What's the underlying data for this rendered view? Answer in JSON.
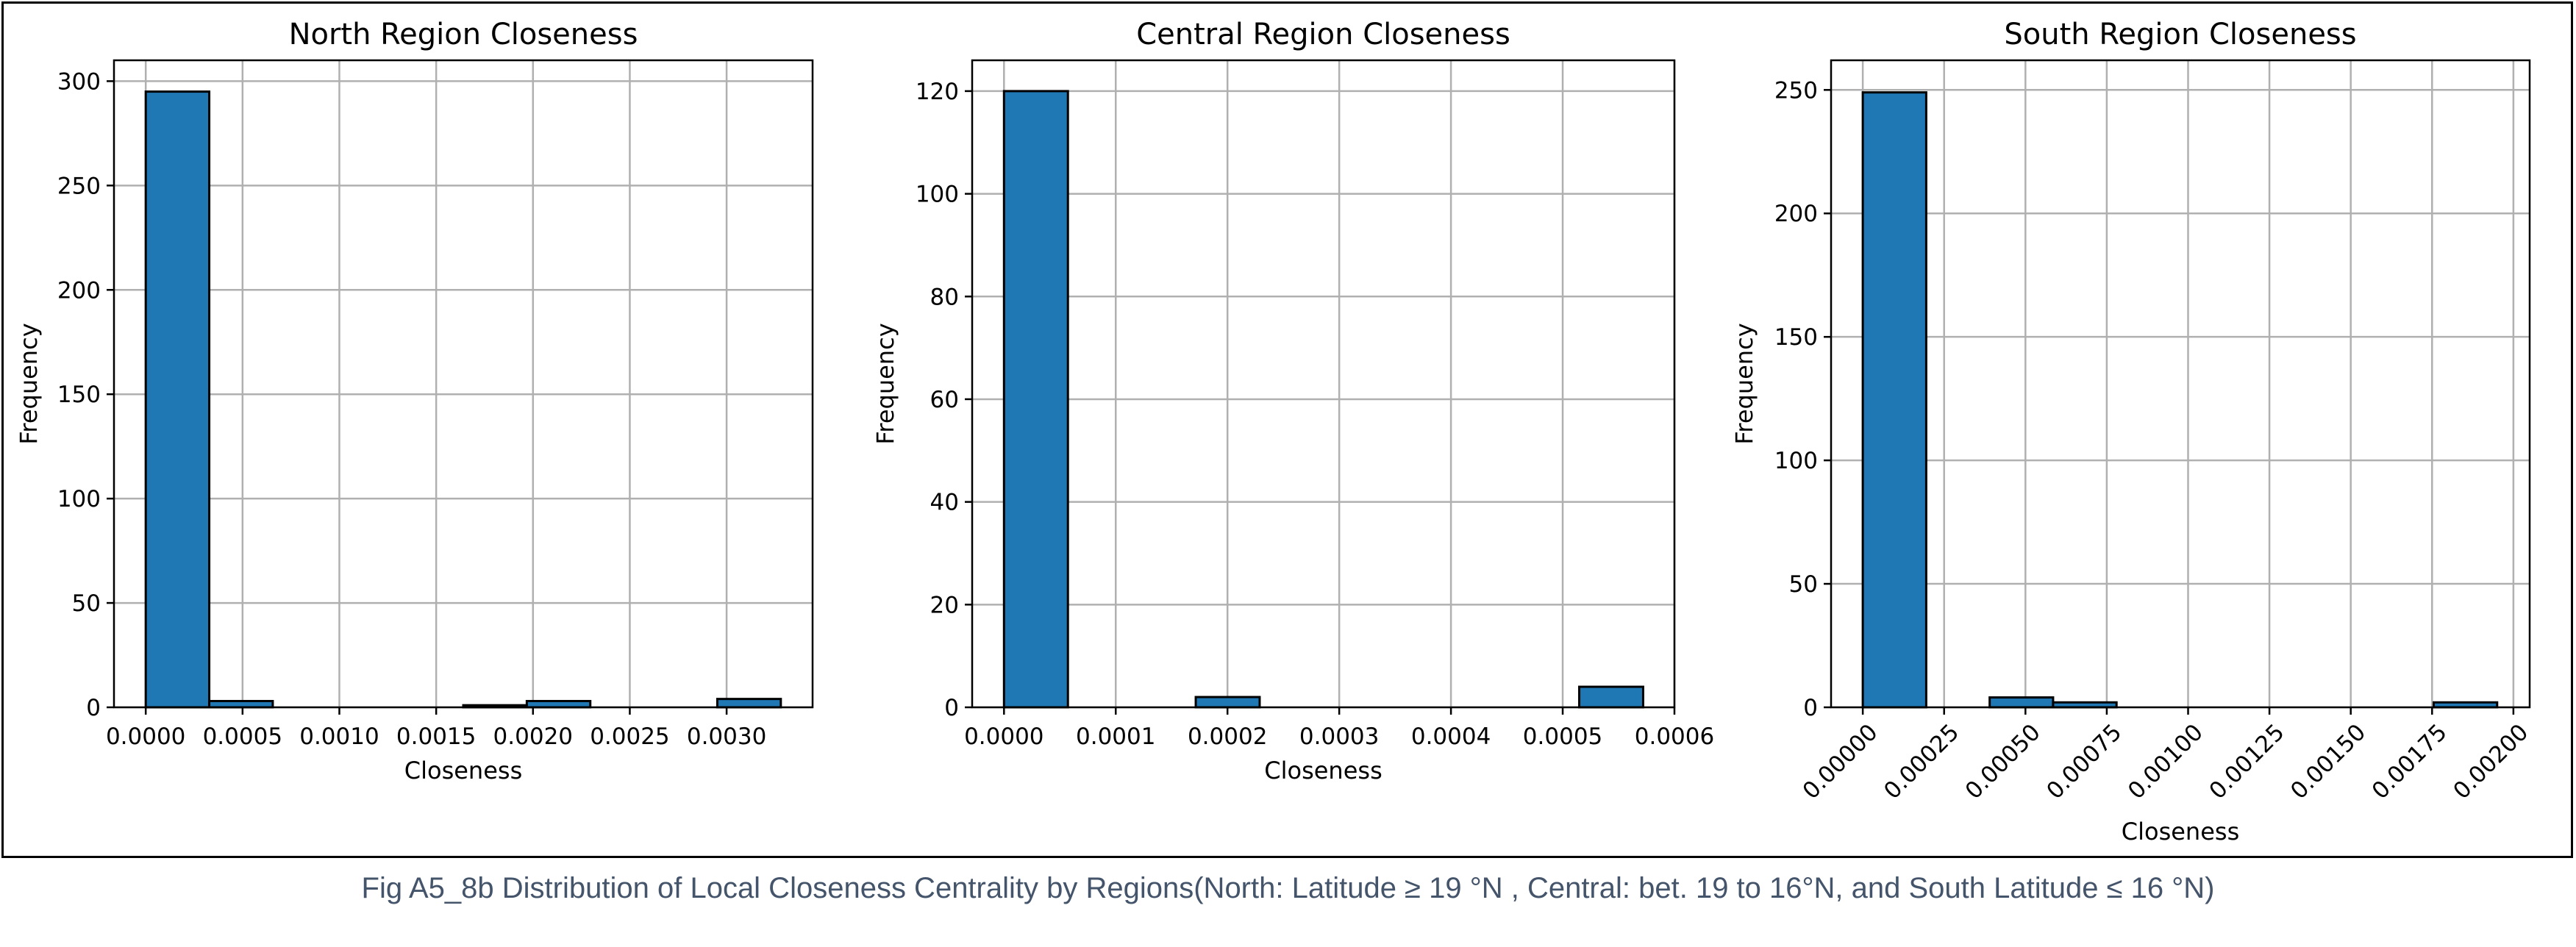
{
  "caption": "Fig A5_8b Distribution of Local Closeness Centrality by Regions(North: Latitude ≥ 19 °N , Central: bet. 19 to 16°N, and South Latitude ≤ 16 °N)",
  "colors": {
    "bar_fill": "#1f77b4",
    "bar_edge": "#000000",
    "grid": "#b0b0b0"
  },
  "chart_data": [
    {
      "type": "bar",
      "title": "North Region Closeness",
      "xlabel": "Closeness",
      "ylabel": "Frequency",
      "grid": true,
      "xlim": [
        -0.000164,
        0.003444
      ],
      "ylim": [
        0,
        310
      ],
      "xticks": [
        0.0,
        0.0005,
        0.001,
        0.0015,
        0.002,
        0.0025,
        0.003
      ],
      "xtick_labels": [
        "0.0000",
        "0.0005",
        "0.0010",
        "0.0015",
        "0.0020",
        "0.0025",
        "0.0030"
      ],
      "yticks": [
        0,
        50,
        100,
        150,
        200,
        250,
        300
      ],
      "ytick_labels": [
        "0",
        "50",
        "100",
        "150",
        "200",
        "250",
        "300"
      ],
      "xtick_rotation": 0,
      "bins": [
        {
          "x0": 0.0,
          "x1": 0.000328,
          "value": 295
        },
        {
          "x0": 0.000328,
          "x1": 0.000656,
          "value": 3
        },
        {
          "x0": 0.000656,
          "x1": 0.000984,
          "value": 0
        },
        {
          "x0": 0.000984,
          "x1": 0.001312,
          "value": 0
        },
        {
          "x0": 0.001312,
          "x1": 0.00164,
          "value": 0
        },
        {
          "x0": 0.00164,
          "x1": 0.001968,
          "value": 1
        },
        {
          "x0": 0.001968,
          "x1": 0.002296,
          "value": 3
        },
        {
          "x0": 0.002296,
          "x1": 0.002624,
          "value": 0
        },
        {
          "x0": 0.002624,
          "x1": 0.002952,
          "value": 0
        },
        {
          "x0": 0.002952,
          "x1": 0.00328,
          "value": 4
        }
      ]
    },
    {
      "type": "bar",
      "title": "Central Region Closeness",
      "xlabel": "Closeness",
      "ylabel": "Frequency",
      "grid": true,
      "xlim": [
        -2.85e-05,
        0.0006
      ],
      "ylim": [
        0,
        126
      ],
      "xticks": [
        0.0,
        0.0001,
        0.0002,
        0.0003,
        0.0004,
        0.0005,
        0.0006
      ],
      "xtick_labels": [
        "0.0000",
        "0.0001",
        "0.0002",
        "0.0003",
        "0.0004",
        "0.0005",
        "0.0006"
      ],
      "yticks": [
        0,
        20,
        40,
        60,
        80,
        100,
        120
      ],
      "ytick_labels": [
        "0",
        "20",
        "40",
        "60",
        "80",
        "100",
        "120"
      ],
      "xtick_rotation": 0,
      "bins": [
        {
          "x0": 0.0,
          "x1": 5.72e-05,
          "value": 120
        },
        {
          "x0": 5.72e-05,
          "x1": 0.0001144,
          "value": 0
        },
        {
          "x0": 0.0001144,
          "x1": 0.0001716,
          "value": 0
        },
        {
          "x0": 0.0001716,
          "x1": 0.0002288,
          "value": 2
        },
        {
          "x0": 0.0002288,
          "x1": 0.000286,
          "value": 0
        },
        {
          "x0": 0.000286,
          "x1": 0.0003432,
          "value": 0
        },
        {
          "x0": 0.0003432,
          "x1": 0.0004004,
          "value": 0
        },
        {
          "x0": 0.0004004,
          "x1": 0.0004576,
          "value": 0
        },
        {
          "x0": 0.0004576,
          "x1": 0.0005148,
          "value": 0
        },
        {
          "x0": 0.0005148,
          "x1": 0.000572,
          "value": 4
        }
      ]
    },
    {
      "type": "bar",
      "title": "South Region Closeness",
      "xlabel": "Closeness",
      "ylabel": "Frequency",
      "grid": true,
      "xlim": [
        -9.75e-05,
        0.00205
      ],
      "ylim": [
        0,
        262
      ],
      "xticks": [
        0.0,
        0.00025,
        0.0005,
        0.00075,
        0.001,
        0.00125,
        0.0015,
        0.00175,
        0.002
      ],
      "xtick_labels": [
        "0.00000",
        "0.00025",
        "0.00050",
        "0.00075",
        "0.00100",
        "0.00125",
        "0.00150",
        "0.00175",
        "0.00200"
      ],
      "yticks": [
        0,
        50,
        100,
        150,
        200,
        250
      ],
      "ytick_labels": [
        "0",
        "50",
        "100",
        "150",
        "200",
        "250"
      ],
      "xtick_rotation": -45,
      "bins": [
        {
          "x0": 0.0,
          "x1": 0.000195,
          "value": 249
        },
        {
          "x0": 0.000195,
          "x1": 0.00039,
          "value": 0
        },
        {
          "x0": 0.00039,
          "x1": 0.000585,
          "value": 4
        },
        {
          "x0": 0.000585,
          "x1": 0.00078,
          "value": 2
        },
        {
          "x0": 0.00078,
          "x1": 0.000975,
          "value": 0
        },
        {
          "x0": 0.000975,
          "x1": 0.00117,
          "value": 0
        },
        {
          "x0": 0.00117,
          "x1": 0.001365,
          "value": 0
        },
        {
          "x0": 0.001365,
          "x1": 0.00156,
          "value": 0
        },
        {
          "x0": 0.00156,
          "x1": 0.001755,
          "value": 0
        },
        {
          "x0": 0.001755,
          "x1": 0.00195,
          "value": 2
        }
      ]
    }
  ]
}
